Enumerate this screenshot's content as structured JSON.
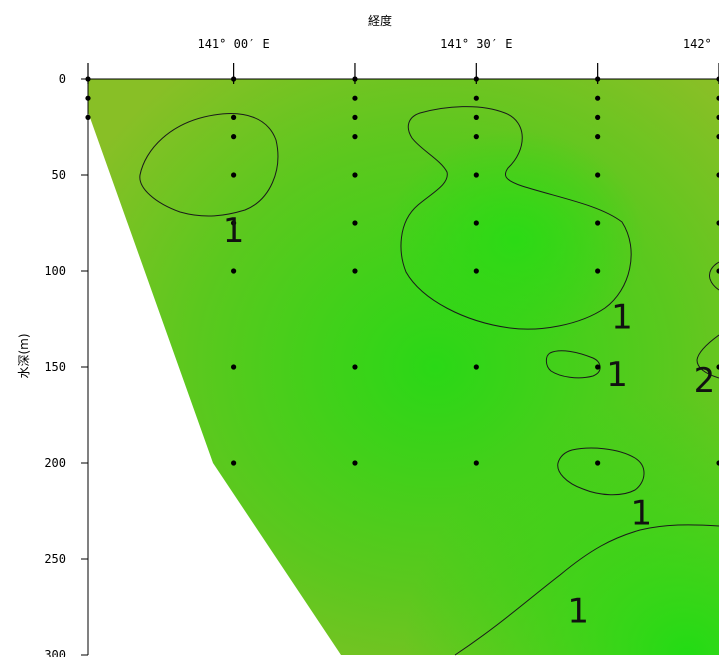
{
  "chart_data": {
    "type": "contour",
    "title": "",
    "xlabel": "経度",
    "ylabel": "水深(m)",
    "x_ticks": [
      {
        "value": 141.0,
        "label": "141° 00′ E"
      },
      {
        "value": 141.5,
        "label": "141° 30′ E"
      },
      {
        "value": 142.0,
        "label": "142° 00′ E"
      }
    ],
    "y_ticks": [
      0,
      50,
      100,
      150,
      200,
      250,
      300
    ],
    "xlim": [
      140.7,
      142.0
    ],
    "ylim": [
      300,
      0
    ],
    "bottom_boundary": [
      {
        "lon": 140.7,
        "depth": 10
      },
      {
        "lon": 141.0,
        "depth": 195
      },
      {
        "lon": 141.5,
        "depth": 300
      }
    ],
    "stations": [
      {
        "lon": 140.7,
        "depths": [
          0,
          10,
          20
        ]
      },
      {
        "lon": 141.0,
        "depths": [
          0,
          20,
          30,
          50,
          75,
          100,
          150,
          200
        ]
      },
      {
        "lon": 141.25,
        "depths": [
          0,
          10,
          20,
          30,
          50,
          75,
          100,
          150,
          200
        ]
      },
      {
        "lon": 141.5,
        "depths": [
          0,
          10,
          20,
          30,
          50,
          75,
          100,
          150,
          200
        ]
      },
      {
        "lon": 141.75,
        "depths": [
          0,
          10,
          20,
          30,
          50,
          75,
          100,
          150,
          200
        ]
      },
      {
        "lon": 142.0,
        "depths": [
          0,
          10,
          20,
          30,
          50,
          75,
          100,
          150,
          200
        ]
      }
    ],
    "contour_labels": [
      {
        "text": "1",
        "lon": 141.0,
        "depth": 80
      },
      {
        "text": "1",
        "lon": 141.8,
        "depth": 125
      },
      {
        "text": "1",
        "lon": 141.79,
        "depth": 155
      },
      {
        "text": "2",
        "lon": 141.97,
        "depth": 158
      },
      {
        "text": "1",
        "lon": 141.84,
        "depth": 227
      },
      {
        "text": "1",
        "lon": 141.71,
        "depth": 278
      }
    ],
    "colors": {
      "field_light": "#8cc028",
      "field_core": "#2ad816",
      "contour_line": "#1a1a1a"
    }
  }
}
